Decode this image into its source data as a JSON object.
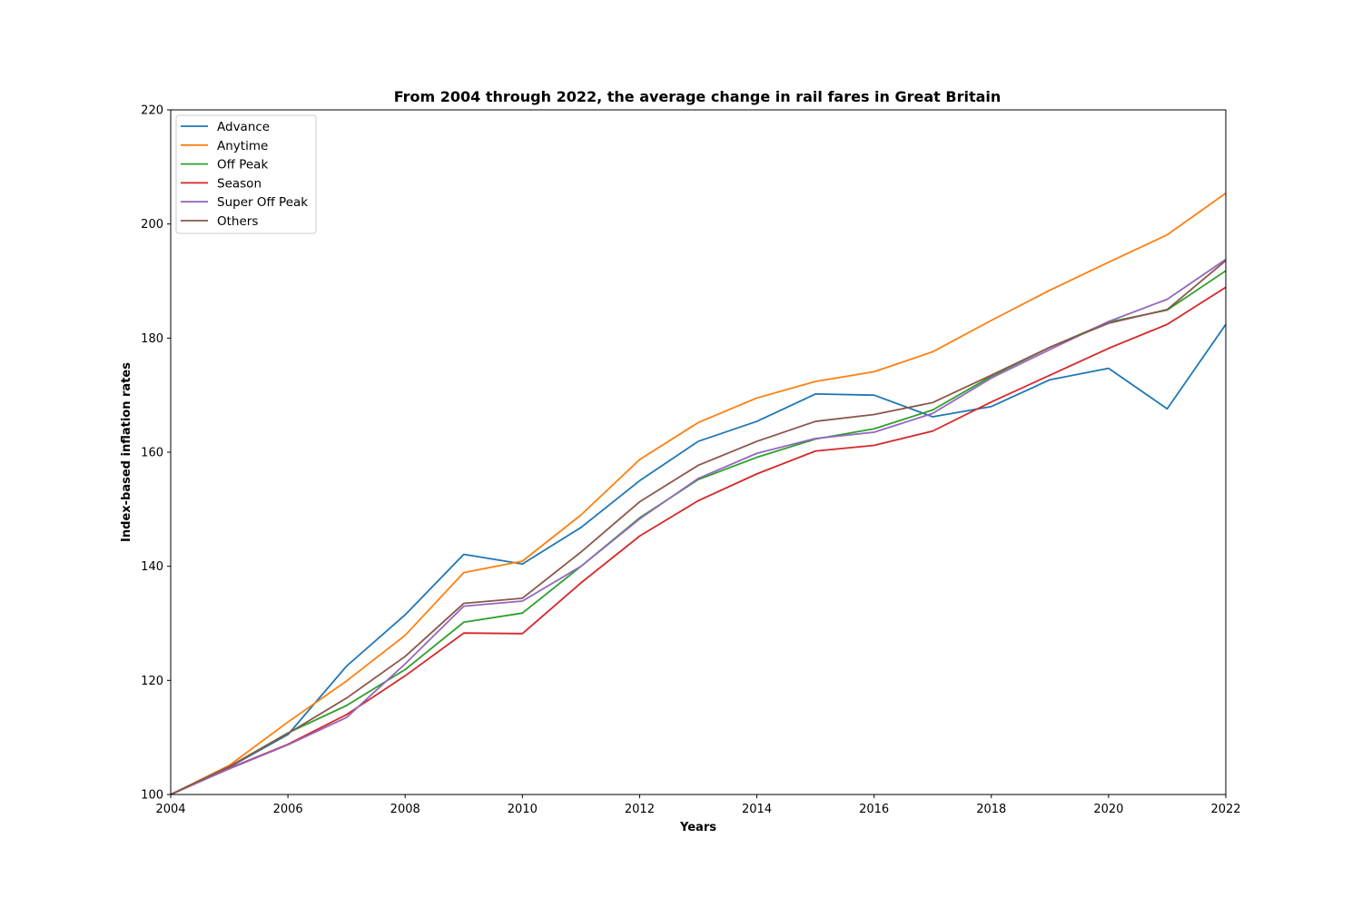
{
  "chart_data": {
    "type": "line",
    "title": "From 2004 through 2022, the average change in rail fares in Great Britain",
    "xlabel": "Years",
    "ylabel": "Index-based inflation rates",
    "xlim": [
      2004,
      2022
    ],
    "ylim": [
      100,
      220
    ],
    "xticks": [
      "2004",
      "2006",
      "2008",
      "2010",
      "2012",
      "2014",
      "2016",
      "2018",
      "2020",
      "2022"
    ],
    "yticks": [
      "100",
      "120",
      "140",
      "160",
      "180",
      "200",
      "220"
    ],
    "grid": false,
    "legend_position": "top-left",
    "x": [
      2004,
      2005,
      2006,
      2007,
      2008,
      2009,
      2010,
      2011,
      2012,
      2013,
      2014,
      2015,
      2016,
      2017,
      2018,
      2019,
      2020,
      2021,
      2022
    ],
    "series": [
      {
        "name": "Advance",
        "color": "#1f77b4",
        "values": [
          100,
          104.8,
          110.5,
          122.5,
          131.5,
          142.1,
          140.4,
          146.8,
          155.0,
          161.9,
          165.4,
          170.2,
          170.0,
          166.2,
          168.0,
          172.7,
          174.7,
          167.6,
          182.4
        ]
      },
      {
        "name": "Anytime",
        "color": "#ff7f0e",
        "values": [
          100,
          105.1,
          112.7,
          119.9,
          127.9,
          138.9,
          140.9,
          149.0,
          158.7,
          165.2,
          169.5,
          172.4,
          174.1,
          177.6,
          183.1,
          188.4,
          193.3,
          198.1,
          205.4
        ]
      },
      {
        "name": "Off Peak",
        "color": "#2ca02c",
        "values": [
          100,
          104.9,
          110.8,
          115.6,
          121.9,
          130.2,
          131.8,
          140.0,
          148.5,
          155.2,
          159.1,
          162.3,
          164.1,
          167.4,
          173.3,
          178.4,
          182.8,
          184.9,
          191.8
        ]
      },
      {
        "name": "Season",
        "color": "#d62728",
        "values": [
          100,
          104.6,
          108.8,
          114.0,
          120.8,
          128.3,
          128.2,
          137.1,
          145.3,
          151.5,
          156.2,
          160.2,
          161.2,
          163.7,
          168.8,
          173.5,
          178.2,
          182.4,
          188.9
        ]
      },
      {
        "name": "Super Off Peak",
        "color": "#9467bd",
        "values": [
          100,
          104.5,
          108.7,
          113.5,
          122.9,
          133.0,
          133.9,
          140.0,
          148.3,
          155.4,
          159.8,
          162.4,
          163.5,
          166.8,
          173.0,
          178.0,
          182.9,
          186.8,
          193.8
        ]
      },
      {
        "name": "Others",
        "color": "#8c564b",
        "values": [
          100,
          104.9,
          110.7,
          116.9,
          124.2,
          133.5,
          134.4,
          142.5,
          151.3,
          157.7,
          161.9,
          165.4,
          166.6,
          168.7,
          173.5,
          178.4,
          182.6,
          185.0,
          193.6
        ]
      }
    ]
  }
}
